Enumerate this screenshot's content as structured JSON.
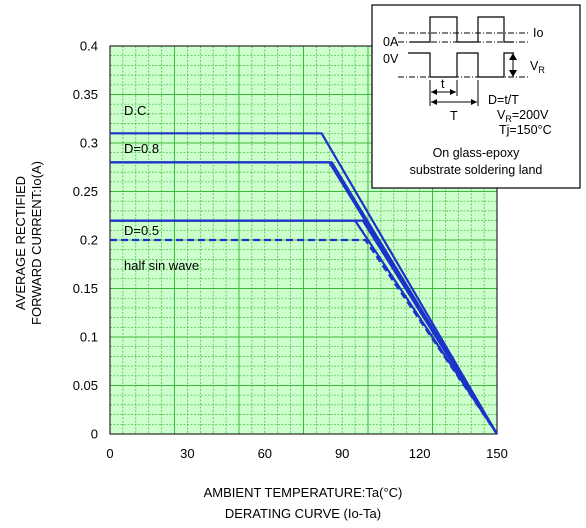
{
  "chart_data": {
    "type": "line",
    "xlabel": "AMBIENT TEMPERATURE:Ta(°C)",
    "caption": "DERATING  CURVE (Io-Ta)",
    "ylabel_line1": "AVERAGE RECTIFIED",
    "ylabel_line2": "FORWARD CURRENT:Io(A)",
    "xlim": [
      0,
      150
    ],
    "ylim": [
      0,
      0.4
    ],
    "x_ticks": [
      "0",
      "30",
      "60",
      "90",
      "120",
      "150"
    ],
    "x_tick_values": [
      0,
      30,
      60,
      90,
      120,
      150
    ],
    "y_ticks": [
      "0",
      "0.05",
      "0.1",
      "0.15",
      "0.2",
      "0.25",
      "0.3",
      "0.35",
      "0.4"
    ],
    "y_tick_values": [
      0,
      0.05,
      0.1,
      0.15,
      0.2,
      0.25,
      0.3,
      0.35,
      0.4
    ],
    "grid": true,
    "series": [
      {
        "name": "D.C.",
        "style": "solid",
        "x": [
          0,
          82,
          150
        ],
        "y": [
          0.31,
          0.31,
          0
        ]
      },
      {
        "style": "solid",
        "x": [
          0,
          86,
          150
        ],
        "y": [
          0.28,
          0.28,
          0
        ]
      },
      {
        "name": "D=0.8",
        "style": "solid",
        "x": [
          0,
          85,
          150
        ],
        "y": [
          0.28,
          0.28,
          0
        ]
      },
      {
        "style": "solid",
        "x": [
          0,
          98,
          150
        ],
        "y": [
          0.22,
          0.22,
          0
        ]
      },
      {
        "name": "D=0.5",
        "style": "solid",
        "x": [
          0,
          95,
          150
        ],
        "y": [
          0.22,
          0.22,
          0
        ]
      },
      {
        "name": "half sin wave",
        "style": "dashed",
        "x": [
          0,
          99,
          150
        ],
        "y": [
          0.2,
          0.2,
          0
        ]
      }
    ],
    "annotations": [
      "D.C.",
      "D=0.8",
      "D=0.5",
      "half sin wave"
    ],
    "colors": {
      "curve": "#1a33c8",
      "grid": "#3cb83c",
      "background": "#ccffcc"
    }
  },
  "inset": {
    "label_io": "Io",
    "label_0a": "0A",
    "label_0v": "0V",
    "label_vr": "V",
    "label_vr_sub": "R",
    "label_t_small": "t",
    "label_T": "T",
    "eq_d": "D=t/T",
    "eq_vr_pre": "V",
    "eq_vr_sub": "R",
    "eq_vr_post": "=200V",
    "eq_tj": "Tj=150°C",
    "note_line1": "On glass-epoxy",
    "note_line2": "substrate soldering land"
  }
}
